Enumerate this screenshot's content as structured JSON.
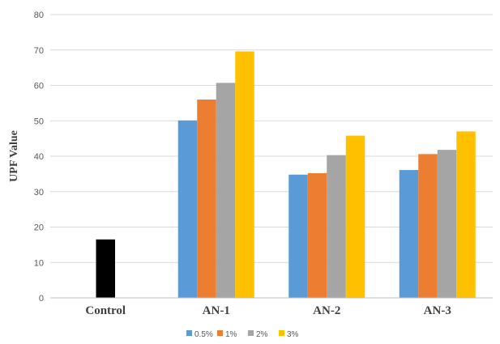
{
  "chart_data": {
    "type": "bar",
    "title": "",
    "xlabel": "",
    "ylabel": "UPF Value",
    "ylim": [
      0,
      80
    ],
    "yticks": [
      0,
      10,
      20,
      30,
      40,
      50,
      60,
      70,
      80
    ],
    "grid": true,
    "legend_position": "bottom",
    "categories": [
      "Control",
      "AN-1",
      "AN-2",
      "AN-3"
    ],
    "control": {
      "value": 16.5,
      "color": "#000000"
    },
    "series": [
      {
        "name": "0.5%",
        "color": "#5B9BD5",
        "values": [
          null,
          50.1,
          34.8,
          36.1
        ]
      },
      {
        "name": "1%",
        "color": "#ED7D31",
        "values": [
          null,
          56.0,
          35.2,
          40.6
        ]
      },
      {
        "name": "2%",
        "color": "#A5A5A5",
        "values": [
          null,
          60.7,
          40.3,
          41.8
        ]
      },
      {
        "name": "3%",
        "color": "#FFC000",
        "values": [
          null,
          69.6,
          45.8,
          47.0
        ]
      }
    ]
  }
}
